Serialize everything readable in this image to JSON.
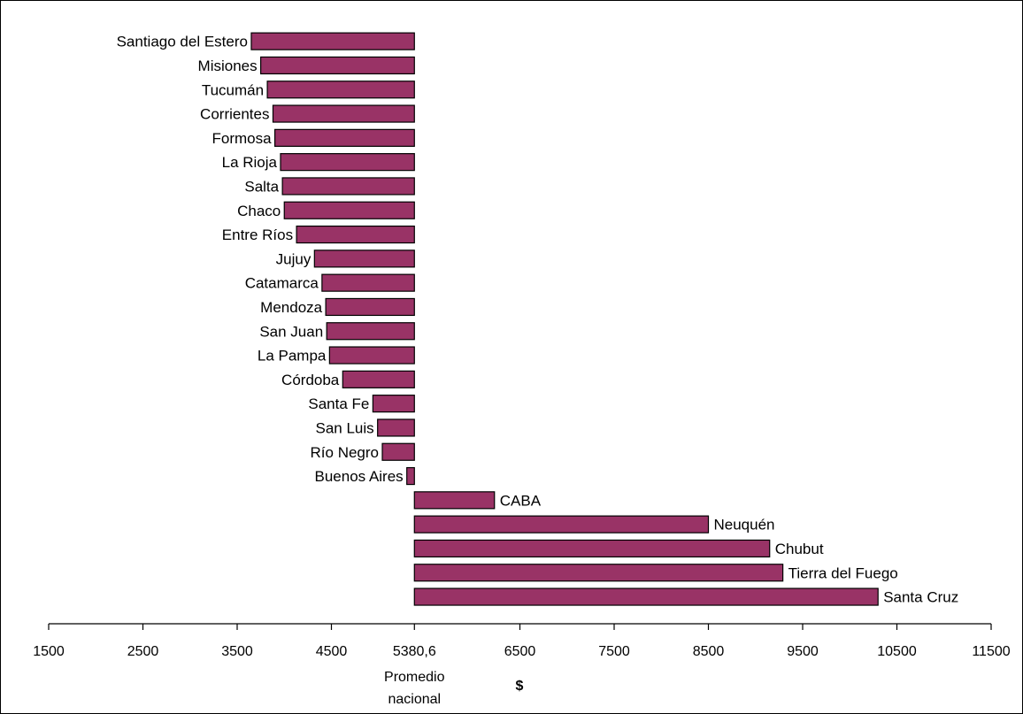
{
  "chart_data": {
    "type": "bar",
    "orientation": "horizontal",
    "baseline": 5380.6,
    "baseline_label": [
      "Promedio",
      "nacional"
    ],
    "xlabel": "$",
    "xlim": [
      1500,
      11500
    ],
    "xticks": [
      1500,
      2500,
      3500,
      4500,
      5380.6,
      6500,
      7500,
      8500,
      9500,
      10500,
      11500
    ],
    "xtick_labels": [
      "1500",
      "2500",
      "3500",
      "4500",
      "5380,6",
      "6500",
      "7500",
      "8500",
      "9500",
      "10500",
      "11500"
    ],
    "bar_color": "#993366",
    "categories": [
      "Santiago del Estero",
      "Misiones",
      "Tucumán",
      "Corrientes",
      "Formosa",
      "La Rioja",
      "Salta",
      "Chaco",
      "Entre Ríos",
      "Jujuy",
      "Catamarca",
      "Mendoza",
      "San Juan",
      "La Pampa",
      "Córdoba",
      "Santa Fe",
      "San Luis",
      "Río Negro",
      "Buenos Aires",
      "CABA",
      "Neuquén",
      "Chubut",
      "Tierra del Fuego",
      "Santa Cruz"
    ],
    "values": [
      3650,
      3750,
      3820,
      3880,
      3900,
      3960,
      3980,
      4000,
      4130,
      4320,
      4400,
      4440,
      4450,
      4480,
      4620,
      4940,
      4990,
      5040,
      5300,
      6230,
      8500,
      9150,
      9290,
      10300
    ]
  }
}
